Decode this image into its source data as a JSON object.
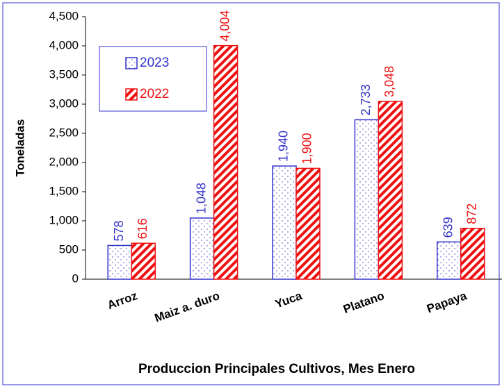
{
  "chart_data": {
    "type": "bar",
    "x_label": "Produccion Principales Cultivos, Mes Enero",
    "y_label": "Toneladas",
    "categories": [
      "Arroz",
      "Maiz a. duro",
      "Yuca",
      "Platano",
      "Papaya"
    ],
    "series": [
      {
        "name": "2023",
        "color": "#3333cc",
        "values": [
          578,
          1048,
          1940,
          2733,
          639
        ],
        "value_labels": [
          "578",
          "1,048",
          "1,940",
          "2,733",
          "639"
        ]
      },
      {
        "name": "2022",
        "color": "#ee1111",
        "values": [
          616,
          4004,
          1900,
          3048,
          872
        ],
        "value_labels": [
          "616",
          "4,004",
          "1,900",
          "3,048",
          "872"
        ]
      }
    ],
    "ylim": [
      0,
      4500
    ],
    "yticks": [
      0,
      500,
      {
        "value": 1000,
        "label": "1,000"
      },
      {
        "value": 1500,
        "label": "1,500"
      },
      {
        "value": 2000,
        "label": "2,000"
      },
      {
        "value": 2500,
        "label": "2,500"
      },
      {
        "value": 3000,
        "label": "3,000"
      },
      {
        "value": 3500,
        "label": "3,500"
      },
      {
        "value": 4000,
        "label": "4,000"
      },
      {
        "value": 4500,
        "label": "4,500"
      }
    ],
    "legend": "upper left"
  }
}
